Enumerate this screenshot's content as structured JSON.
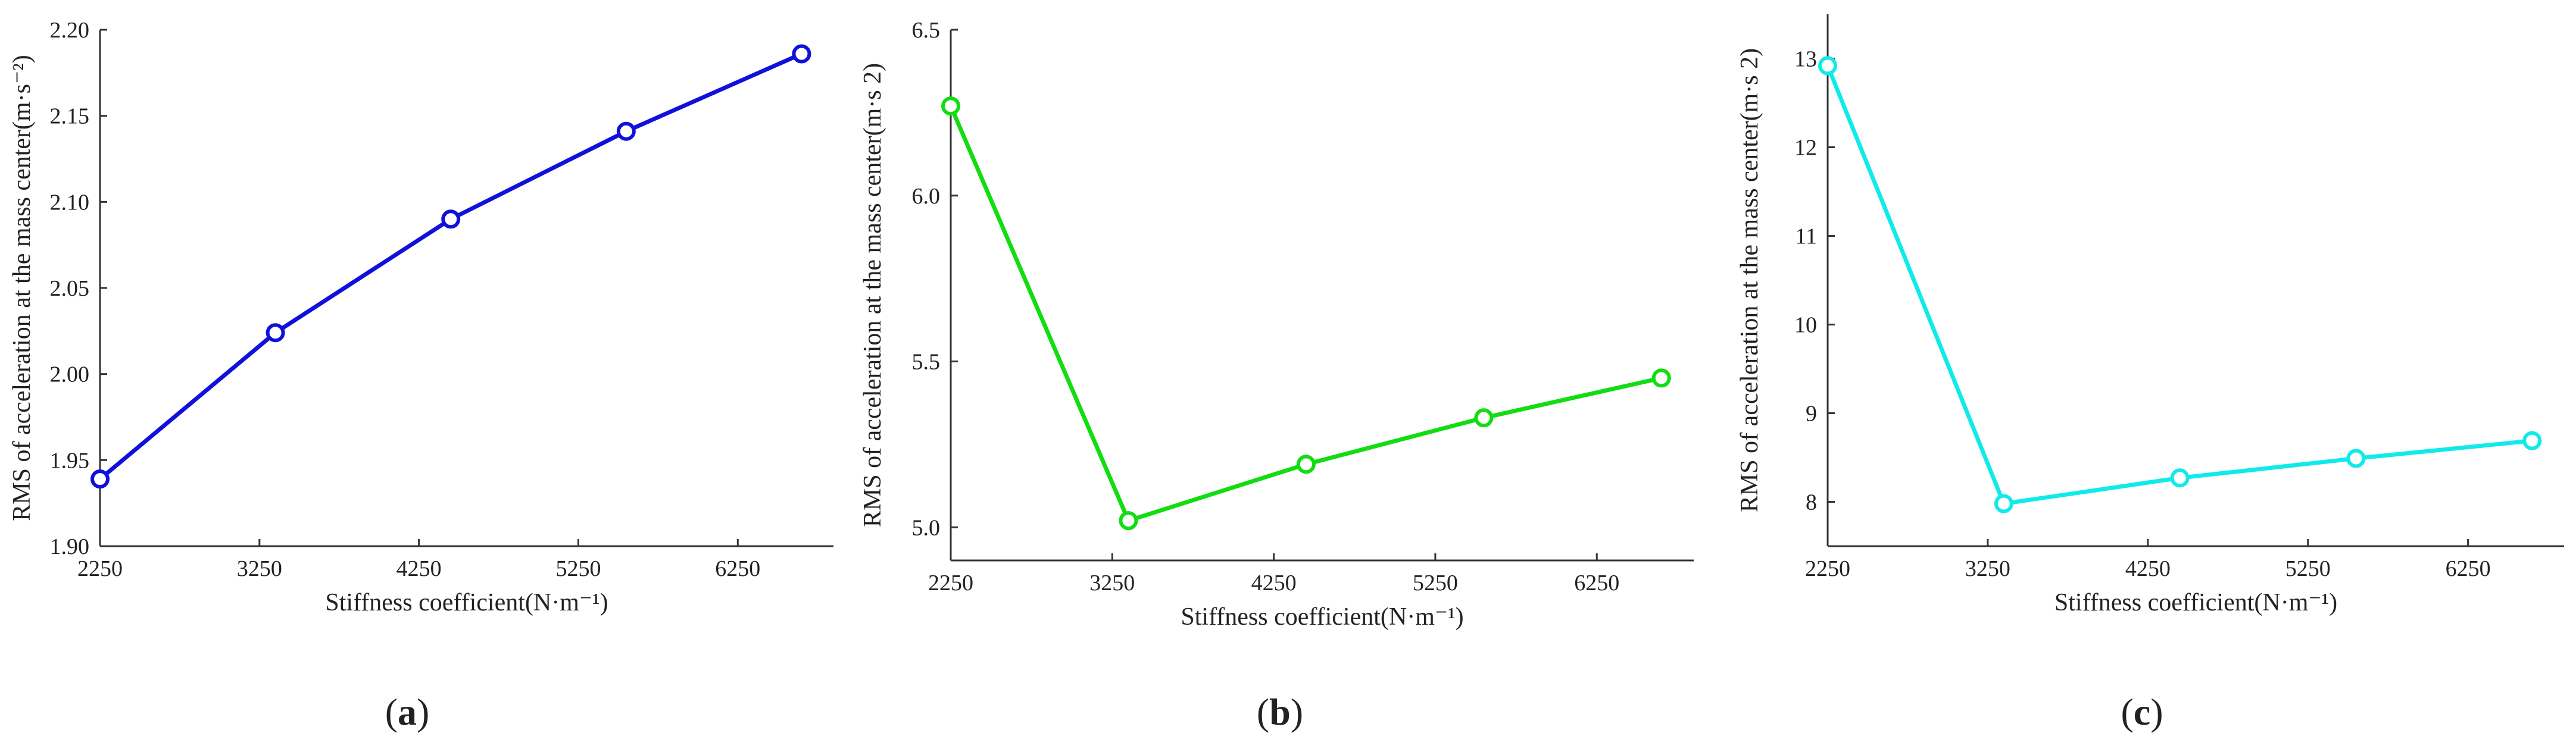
{
  "chart_data": [
    {
      "type": "line",
      "panel_label": "a",
      "xlabel": "Stiffness coefficient(N·m⁻¹)",
      "ylabel": "RMS of acceleration at the mass center(m·s⁻²)",
      "xlim": [
        2250,
        6850
      ],
      "ylim": [
        1.9,
        2.2
      ],
      "x_ticks": [
        2250,
        3250,
        4250,
        5250,
        6250
      ],
      "y_ticks": [
        "1.90",
        "1.95",
        "2.00",
        "2.05",
        "2.10",
        "2.15",
        "2.20"
      ],
      "series": [
        {
          "color": "#1010dd",
          "x": [
            2250,
            3350,
            4450,
            5550,
            6650
          ],
          "values": [
            1.939,
            2.024,
            2.09,
            2.141,
            2.186
          ]
        }
      ]
    },
    {
      "type": "line",
      "panel_label": "b",
      "xlabel": "Stiffness coefficient(N·m⁻¹)",
      "ylabel": "RMS of acceleration at the mass center(m·s 2)",
      "xlim": [
        2250,
        6850
      ],
      "ylim": [
        4.9,
        6.5
      ],
      "x_ticks": [
        2250,
        3250,
        4250,
        5250,
        6250
      ],
      "y_ticks": [
        "5.0",
        "5.5",
        "6.0",
        "6.5"
      ],
      "series": [
        {
          "color": "#11dd11",
          "x": [
            2250,
            3350,
            4450,
            5550,
            6650
          ],
          "values": [
            6.27,
            5.02,
            5.19,
            5.33,
            5.45
          ]
        }
      ]
    },
    {
      "type": "line",
      "panel_label": "c",
      "xlabel": "Stiffness coefficient(N·m⁻¹)",
      "ylabel": "RMS of acceleration at the mass center(m·s 2)",
      "xlim": [
        2250,
        6850
      ],
      "ylim": [
        7.5,
        13.5
      ],
      "x_ticks": [
        2250,
        3250,
        4250,
        5250,
        6250
      ],
      "y_ticks": [
        "8",
        "9",
        "10",
        "11",
        "12",
        "13"
      ],
      "series": [
        {
          "color": "#11eaea",
          "x": [
            2250,
            3350,
            4450,
            5550,
            6650
          ],
          "values": [
            12.92,
            7.98,
            8.27,
            8.49,
            8.69
          ]
        }
      ]
    }
  ]
}
